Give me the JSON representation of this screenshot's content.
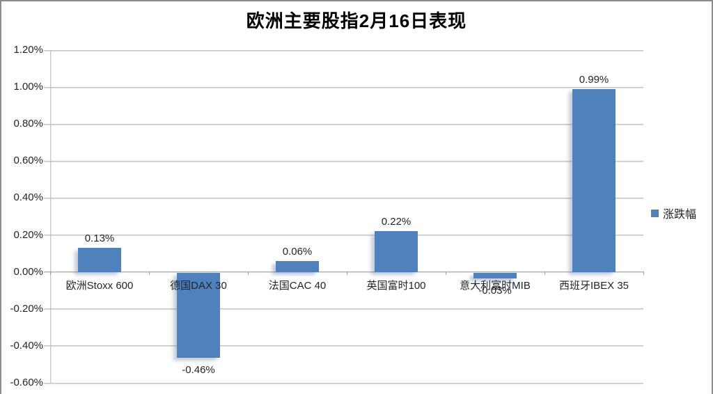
{
  "title": "欧洲主要股指2月16日表现",
  "legend": {
    "label": "涨跌幅"
  },
  "colors": {
    "bar": "#4F81BD",
    "gridline": "#c3c3c3",
    "text": "#20242e"
  },
  "chart_data": {
    "type": "bar",
    "title": "欧洲主要股指2月16日表现",
    "categories": [
      "欧洲Stoxx 600",
      "德国DAX 30",
      "法国CAC 40",
      "英国富时100",
      "意大利富时MIB",
      "西班牙IBEX 35"
    ],
    "series": [
      {
        "name": "涨跌幅",
        "values": [
          0.13,
          -0.46,
          0.06,
          0.22,
          -0.03,
          0.99
        ],
        "data_labels": [
          "0.13%",
          "-0.46%",
          "0.06%",
          "0.22%",
          "-0.03%",
          "0.99%"
        ],
        "color": "#4F81BD"
      }
    ],
    "xlabel": "",
    "ylabel": "",
    "ylim": [
      -0.6,
      1.2
    ],
    "y_ticks": [
      {
        "v": 1.2,
        "label": "1.20%"
      },
      {
        "v": 1.0,
        "label": "1.00%"
      },
      {
        "v": 0.8,
        "label": "0.80%"
      },
      {
        "v": 0.6,
        "label": "0.60%"
      },
      {
        "v": 0.4,
        "label": "0.40%"
      },
      {
        "v": 0.2,
        "label": "0.20%"
      },
      {
        "v": 0.0,
        "label": "0.00%"
      },
      {
        "v": -0.2,
        "label": "-0.20%"
      },
      {
        "v": -0.4,
        "label": "-0.40%"
      },
      {
        "v": -0.6,
        "label": "-0.60%"
      }
    ],
    "grid": true,
    "legend_entries": [
      "涨跌幅"
    ],
    "legend_position": "right",
    "data_labels_shown": true
  }
}
